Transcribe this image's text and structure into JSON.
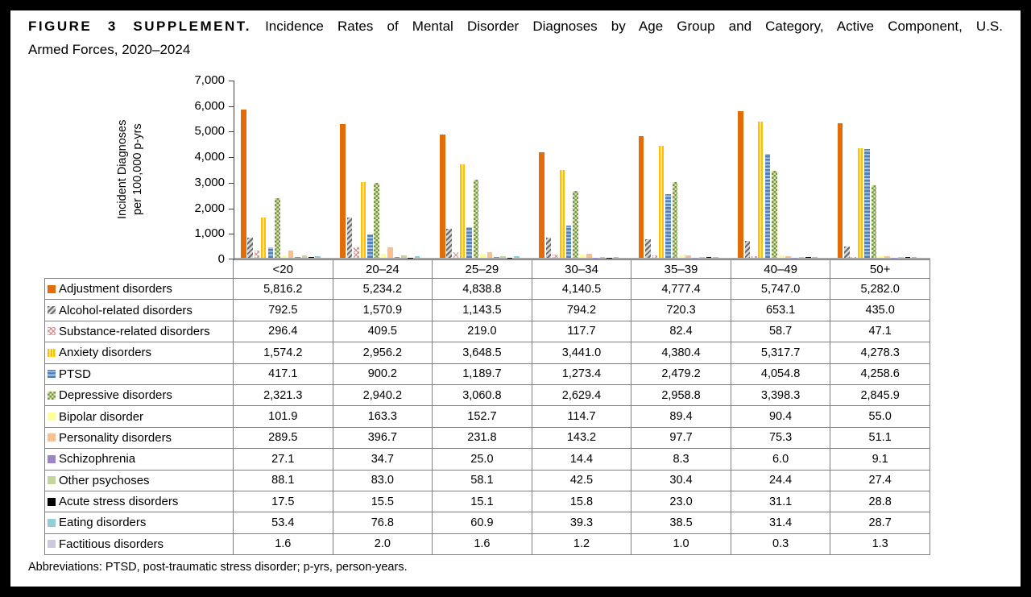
{
  "title": {
    "figure_label": "FIGURE 3 SUPPLEMENT.",
    "text_line1": "Incidence Rates of Mental Disorder Diagnoses by Age Group and Category, Active Component, U.S.",
    "text_line2": "Armed Forces, 2020–2024"
  },
  "footer": "Abbreviations: PTSD, post-traumatic stress disorder; p-yrs, person-years.",
  "chart_data": {
    "type": "bar",
    "title": "Incidence Rates of Mental Disorder Diagnoses by Age Group and Category, Active Component, U.S. Armed Forces, 2020–2024",
    "ylabel": "Incident Diagnoses per 100,000 p-yrs",
    "ylabel_lines": [
      "Incident Diagnoses",
      "per 100,000 p-yrs"
    ],
    "xlabel": "",
    "ylim": [
      0,
      7000
    ],
    "ytick_step": 1000,
    "grid": false,
    "legend_position": "table-left-column",
    "categories": [
      "<20",
      "20–24",
      "25–29",
      "30–34",
      "35–39",
      "40–49",
      "50+"
    ],
    "series": [
      {
        "name": "Adjustment disorders",
        "key": "adjustment",
        "swatch": "orange-solid",
        "color": "#E36C09",
        "values": [
          5816.2,
          5234.2,
          4838.8,
          4140.5,
          4777.4,
          5747.0,
          5282.0
        ]
      },
      {
        "name": "Alcohol-related disorders",
        "key": "alcohol",
        "swatch": "gray-diagonal-stripes",
        "color": "#6B6B6B",
        "values": [
          792.5,
          1570.9,
          1143.5,
          794.2,
          720.3,
          653.1,
          435.0
        ]
      },
      {
        "name": "Substance-related disorders",
        "key": "substance",
        "swatch": "red-crosshatch-on-white",
        "color": "#DC8C8C",
        "values": [
          296.4,
          409.5,
          219.0,
          117.7,
          82.4,
          58.7,
          47.1
        ]
      },
      {
        "name": "Anxiety disorders",
        "key": "anxiety",
        "swatch": "gold-vertical-stripes",
        "color": "#FFC000",
        "values": [
          1574.2,
          2956.2,
          3648.5,
          3441.0,
          4380.4,
          5317.7,
          4278.3
        ]
      },
      {
        "name": "PTSD",
        "key": "ptsd",
        "swatch": "blue-horizontal-stripes",
        "color": "#4F81BD",
        "values": [
          417.1,
          900.2,
          1189.7,
          1273.4,
          2479.2,
          4054.8,
          4258.6
        ]
      },
      {
        "name": "Depressive disorders",
        "key": "depressive",
        "swatch": "green-checkerboard",
        "color": "#77933C",
        "values": [
          2321.3,
          2940.2,
          3060.8,
          2629.4,
          2958.8,
          3398.3,
          2845.9
        ]
      },
      {
        "name": "Bipolar disorder",
        "key": "bipolar",
        "swatch": "pale-yellow-solid",
        "color": "#FFFF99",
        "values": [
          101.9,
          163.3,
          152.7,
          114.7,
          89.4,
          90.4,
          55.0
        ]
      },
      {
        "name": "Personality disorders",
        "key": "personality",
        "swatch": "peach-solid",
        "color": "#FAC090",
        "values": [
          289.5,
          396.7,
          231.8,
          143.2,
          97.7,
          75.3,
          51.1
        ]
      },
      {
        "name": "Schizophrenia",
        "key": "schizophrenia",
        "swatch": "purple-solid",
        "color": "#9B84C7",
        "values": [
          27.1,
          34.7,
          25.0,
          14.4,
          8.3,
          6.0,
          9.1
        ]
      },
      {
        "name": "Other psychoses",
        "key": "other-psychoses",
        "swatch": "olive-green-solid",
        "color": "#C3D69B",
        "values": [
          88.1,
          83.0,
          58.1,
          42.5,
          30.4,
          24.4,
          27.4
        ]
      },
      {
        "name": "Acute stress disorders",
        "key": "acute-stress",
        "swatch": "black-solid",
        "color": "#000000",
        "values": [
          17.5,
          15.5,
          15.1,
          15.8,
          23.0,
          31.1,
          28.8
        ]
      },
      {
        "name": "Eating disorders",
        "key": "eating",
        "swatch": "light-blue-solid",
        "color": "#92CDDC",
        "values": [
          53.4,
          76.8,
          60.9,
          39.3,
          38.5,
          31.4,
          28.7
        ]
      },
      {
        "name": "Factitious disorders",
        "key": "factitious",
        "swatch": "pale-lavender-solid",
        "color": "#CFC9E0",
        "values": [
          1.6,
          2.0,
          1.6,
          1.2,
          1.0,
          0.3,
          1.3
        ]
      }
    ]
  }
}
